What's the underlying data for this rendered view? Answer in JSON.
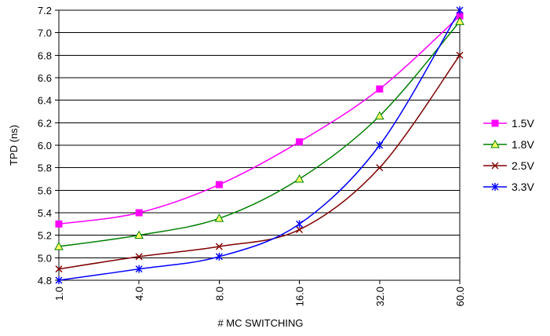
{
  "chart_data": {
    "type": "line",
    "xlabel": "# MC SWITCHING",
    "ylabel": "TPD (ns)",
    "categories": [
      "1.0",
      "4.0",
      "8.0",
      "16.0",
      "32.0",
      "60.0"
    ],
    "ylim": [
      4.8,
      7.2
    ],
    "yticks": [
      "4.8",
      "5.0",
      "5.2",
      "5.4",
      "5.6",
      "5.8",
      "6.0",
      "6.2",
      "6.4",
      "6.6",
      "6.8",
      "7.0",
      "7.2"
    ],
    "grid": "horizontal",
    "legend_position": "right",
    "series": [
      {
        "name": "1.5V",
        "color": "#ff00ff",
        "marker": "square",
        "values": [
          5.3,
          5.4,
          5.65,
          6.03,
          6.5,
          7.15
        ]
      },
      {
        "name": "1.8V",
        "color": "#008000",
        "marker": "triangle",
        "values": [
          5.1,
          5.2,
          5.35,
          5.7,
          6.26,
          7.1
        ]
      },
      {
        "name": "2.5V",
        "color": "#800000",
        "marker": "x",
        "values": [
          4.9,
          5.01,
          5.1,
          5.25,
          5.8,
          6.8
        ]
      },
      {
        "name": "3.3V",
        "color": "#0000ff",
        "marker": "star",
        "values": [
          4.8,
          4.9,
          5.01,
          5.3,
          6.0,
          7.2
        ]
      }
    ]
  }
}
